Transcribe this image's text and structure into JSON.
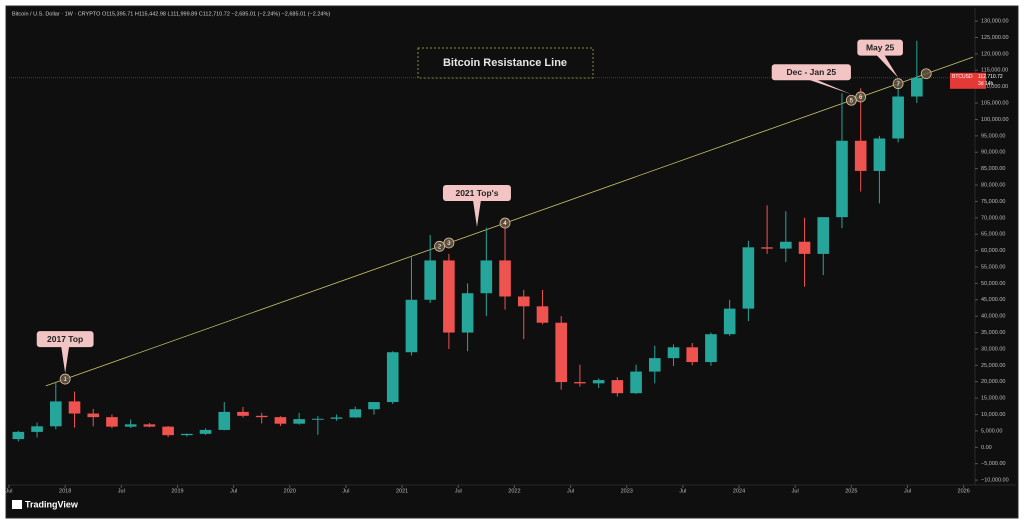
{
  "chart_data": {
    "type": "candlestick",
    "title": "Bitcoin Resistance Line",
    "header": "Bitcoin / U.S. Dollar · 1W · CRYPTO  O115,395.71 H115,442.98 L111,999.89 C112,710.72 −2,685.01 (−2.24%)  −2,685.01 (−2.24%)",
    "symbol": "BTCUSD",
    "last_price": {
      "value": 112710.72,
      "label": "112,710.72"
    },
    "countdown": "3d 14h",
    "up_color": "#26a69a",
    "down_color": "#ef5350",
    "x": [
      "2017-07",
      "2017-09",
      "2017-11",
      "2018-01",
      "2018-03",
      "2018-05",
      "2018-07",
      "2018-09",
      "2018-11",
      "2019-01",
      "2019-03",
      "2019-05",
      "2019-07",
      "2019-09",
      "2019-11",
      "2020-01",
      "2020-03",
      "2020-05",
      "2020-07",
      "2020-09",
      "2020-11",
      "2021-01",
      "2021-03",
      "2021-05",
      "2021-07",
      "2021-09",
      "2021-11",
      "2022-01",
      "2022-03",
      "2022-05",
      "2022-07",
      "2022-09",
      "2022-11",
      "2023-01",
      "2023-03",
      "2023-05",
      "2023-07",
      "2023-09",
      "2023-11",
      "2024-01",
      "2024-03",
      "2024-05",
      "2024-07",
      "2024-09",
      "2024-11",
      "2025-01",
      "2025-03",
      "2025-05",
      "2025-07"
    ],
    "open": [
      2500,
      4700,
      6400,
      14000,
      10300,
      9200,
      6300,
      7000,
      6300,
      3700,
      4100,
      5300,
      10800,
      9600,
      9200,
      7200,
      8600,
      8700,
      9100,
      11600,
      13800,
      29000,
      45000,
      57000,
      35000,
      47000,
      57000,
      46000,
      43000,
      38000,
      19900,
      19500,
      20500,
      16500,
      23100,
      27200,
      30500,
      26000,
      34500,
      42300,
      61000,
      60600,
      62700,
      59000,
      70200,
      93500,
      84300,
      94200,
      107000
    ],
    "high": [
      5000,
      7500,
      19800,
      17000,
      11700,
      10000,
      8500,
      7400,
      6500,
      4200,
      5800,
      13800,
      12300,
      10500,
      9500,
      10500,
      9500,
      10000,
      12400,
      13800,
      29300,
      58000,
      64800,
      59000,
      50000,
      67000,
      69000,
      48000,
      48000,
      40000,
      25200,
      21000,
      21400,
      25200,
      31000,
      31400,
      31800,
      35000,
      45000,
      63000,
      73800,
      72000,
      70000,
      70000,
      108000,
      109500,
      95000,
      112000,
      124000
    ],
    "low": [
      1800,
      3000,
      5500,
      6000,
      6400,
      5800,
      5900,
      6100,
      3100,
      3300,
      3800,
      5200,
      9100,
      7300,
      6500,
      6900,
      3800,
      8100,
      9000,
      10000,
      13200,
      28000,
      44000,
      30000,
      29300,
      40000,
      42000,
      33000,
      37500,
      17600,
      18500,
      18100,
      15500,
      16300,
      19500,
      24800,
      25000,
      24900,
      34000,
      38500,
      59000,
      56500,
      49000,
      52500,
      66800,
      78000,
      74400,
      93000,
      105000
    ],
    "close": [
      4700,
      6400,
      14000,
      10300,
      9200,
      6300,
      7000,
      6300,
      3700,
      4100,
      5300,
      10800,
      9600,
      9200,
      7200,
      8600,
      8700,
      9100,
      11600,
      13800,
      29000,
      45000,
      57000,
      35000,
      47000,
      57000,
      46000,
      43000,
      38000,
      19900,
      19500,
      20500,
      16500,
      23100,
      27200,
      30500,
      26000,
      34500,
      42300,
      61000,
      60600,
      62700,
      59000,
      70200,
      93500,
      84300,
      94200,
      107000,
      112710.72
    ],
    "xlim": [
      "2017-07",
      "2026-02"
    ],
    "xticks": [
      {
        "value": "2017-07",
        "label": "Jul"
      },
      {
        "value": "2018-01",
        "label": "2018"
      },
      {
        "value": "2018-07",
        "label": "Jul"
      },
      {
        "value": "2019-01",
        "label": "2019"
      },
      {
        "value": "2019-07",
        "label": "Jul"
      },
      {
        "value": "2020-01",
        "label": "2020"
      },
      {
        "value": "2020-07",
        "label": "Jul"
      },
      {
        "value": "2021-01",
        "label": "2021"
      },
      {
        "value": "2021-07",
        "label": "Jul"
      },
      {
        "value": "2022-01",
        "label": "2022"
      },
      {
        "value": "2022-07",
        "label": "Jul"
      },
      {
        "value": "2023-01",
        "label": "2023"
      },
      {
        "value": "2023-07",
        "label": "Jul"
      },
      {
        "value": "2024-01",
        "label": "2024"
      },
      {
        "value": "2024-07",
        "label": "Jul"
      },
      {
        "value": "2025-01",
        "label": "2025"
      },
      {
        "value": "2025-07",
        "label": "Jul"
      },
      {
        "value": "2026-01",
        "label": "2026"
      }
    ],
    "ylim": [
      -11500,
      134000
    ],
    "yticks": [
      {
        "value": -10000,
        "label": "−10,000.00"
      },
      {
        "value": -5000,
        "label": "−5,000.00"
      },
      {
        "value": 0,
        "label": "0.00"
      },
      {
        "value": 5000,
        "label": "5,000.00"
      },
      {
        "value": 10000,
        "label": "10,000.00"
      },
      {
        "value": 15000,
        "label": "15,000.00"
      },
      {
        "value": 20000,
        "label": "20,000.00"
      },
      {
        "value": 25000,
        "label": "25,000.00"
      },
      {
        "value": 30000,
        "label": "30,000.00"
      },
      {
        "value": 35000,
        "label": "35,000.00"
      },
      {
        "value": 40000,
        "label": "40,000.00"
      },
      {
        "value": 45000,
        "label": "45,000.00"
      },
      {
        "value": 50000,
        "label": "50,000.00"
      },
      {
        "value": 55000,
        "label": "55,000.00"
      },
      {
        "value": 60000,
        "label": "60,000.00"
      },
      {
        "value": 65000,
        "label": "65,000.00"
      },
      {
        "value": 70000,
        "label": "70,000.00"
      },
      {
        "value": 75000,
        "label": "75,000.00"
      },
      {
        "value": 80000,
        "label": "80,000.00"
      },
      {
        "value": 85000,
        "label": "85,000.00"
      },
      {
        "value": 90000,
        "label": "90,000.00"
      },
      {
        "value": 95000,
        "label": "95,000.00"
      },
      {
        "value": 100000,
        "label": "100,000.00"
      },
      {
        "value": 105000,
        "label": "105,000.00"
      },
      {
        "value": 110000,
        "label": "110,000.00"
      },
      {
        "value": 115000,
        "label": "115,000.00"
      },
      {
        "value": 120000,
        "label": "120,000.00"
      },
      {
        "value": 125000,
        "label": "125,000.00"
      },
      {
        "value": 130000,
        "label": "130,000.00"
      }
    ],
    "trendline": {
      "x": [
        "2017-12",
        "2026-01"
      ],
      "y": [
        19800,
        118000
      ],
      "color": "#c9c46a"
    },
    "markers": {
      "x": [
        "2017-12",
        "2021-04",
        "2021-05",
        "2021-11",
        "2024-12",
        "2025-01",
        "2025-05",
        "2025-08"
      ],
      "labels": [
        "1",
        "2",
        "3",
        "4",
        "5",
        "6",
        "7",
        null
      ]
    },
    "callouts": [
      {
        "text": "2017 Top",
        "x": "2017-12"
      },
      {
        "text": "2021 Top's",
        "x": "2021-08"
      },
      {
        "text": "Dec - Jan 25",
        "x": "2024-12"
      },
      {
        "text": "May 25",
        "x": "2025-05"
      }
    ],
    "brand": "TradingView"
  }
}
